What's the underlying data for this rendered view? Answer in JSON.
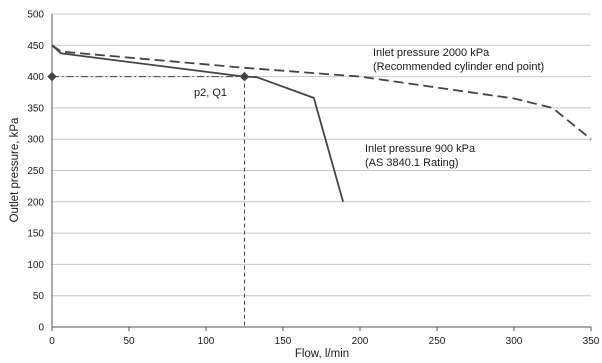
{
  "chart_data": {
    "type": "line",
    "xlabel": "Flow, l/min",
    "ylabel": "Outlet pressure, kPa",
    "xlim": [
      0,
      350
    ],
    "ylim": [
      0,
      500
    ],
    "x_ticks": [
      "0",
      "50",
      "100",
      "150",
      "200",
      "250",
      "300",
      "350"
    ],
    "y_ticks": [
      "0",
      "50",
      "100",
      "150",
      "200",
      "250",
      "300",
      "350",
      "400",
      "450",
      "500"
    ],
    "grid": "horizontal",
    "series": [
      {
        "name": "Inlet pressure 2000 kPa (Recommended cylinder end point)",
        "style": "dashed",
        "color": "#444444",
        "points": [
          [
            0,
            450
          ],
          [
            6,
            440
          ],
          [
            125,
            414
          ],
          [
            200,
            400
          ],
          [
            300,
            365
          ],
          [
            325,
            350
          ],
          [
            350,
            300
          ]
        ]
      },
      {
        "name": "Inlet pressure 900 kPa (AS 3840.1 Rating)",
        "style": "solid",
        "color": "#444444",
        "points": [
          [
            0,
            450
          ],
          [
            6,
            437
          ],
          [
            125,
            400
          ],
          [
            133,
            399
          ],
          [
            170,
            366
          ],
          [
            189,
            200
          ]
        ]
      }
    ],
    "reference": {
      "label": "p2, Q1",
      "x": 125,
      "y": 400,
      "line_start_y": 400,
      "marker_points": [
        [
          0,
          400
        ],
        [
          125,
          400
        ]
      ]
    },
    "annotations": [
      {
        "lines": [
          "Inlet pressure 2000 kPa",
          "(Recommended cylinder end point)"
        ]
      },
      {
        "lines": [
          "Inlet pressure 900 kPa",
          "(AS 3840.1 Rating)"
        ]
      }
    ]
  }
}
